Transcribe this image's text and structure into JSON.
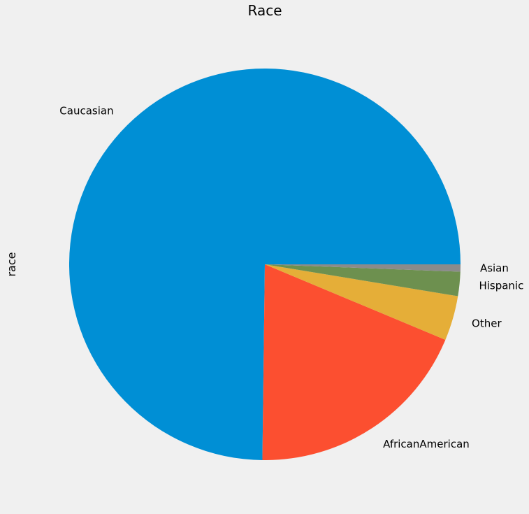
{
  "chart_data": {
    "type": "pie",
    "title": "Race",
    "ylabel": "race",
    "start_angle_deg": 0,
    "direction": "counterclockwise",
    "slices": [
      {
        "label": "Caucasian",
        "value": 74.8,
        "color": "#008fd5"
      },
      {
        "label": "AfricanAmerican",
        "value": 18.9,
        "color": "#fc4f30"
      },
      {
        "label": "Other",
        "value": 3.7,
        "color": "#e5ae38"
      },
      {
        "label": "Hispanic",
        "value": 2.0,
        "color": "#6d904f"
      },
      {
        "label": "Asian",
        "value": 0.6,
        "color": "#8b8b8b"
      }
    ]
  }
}
